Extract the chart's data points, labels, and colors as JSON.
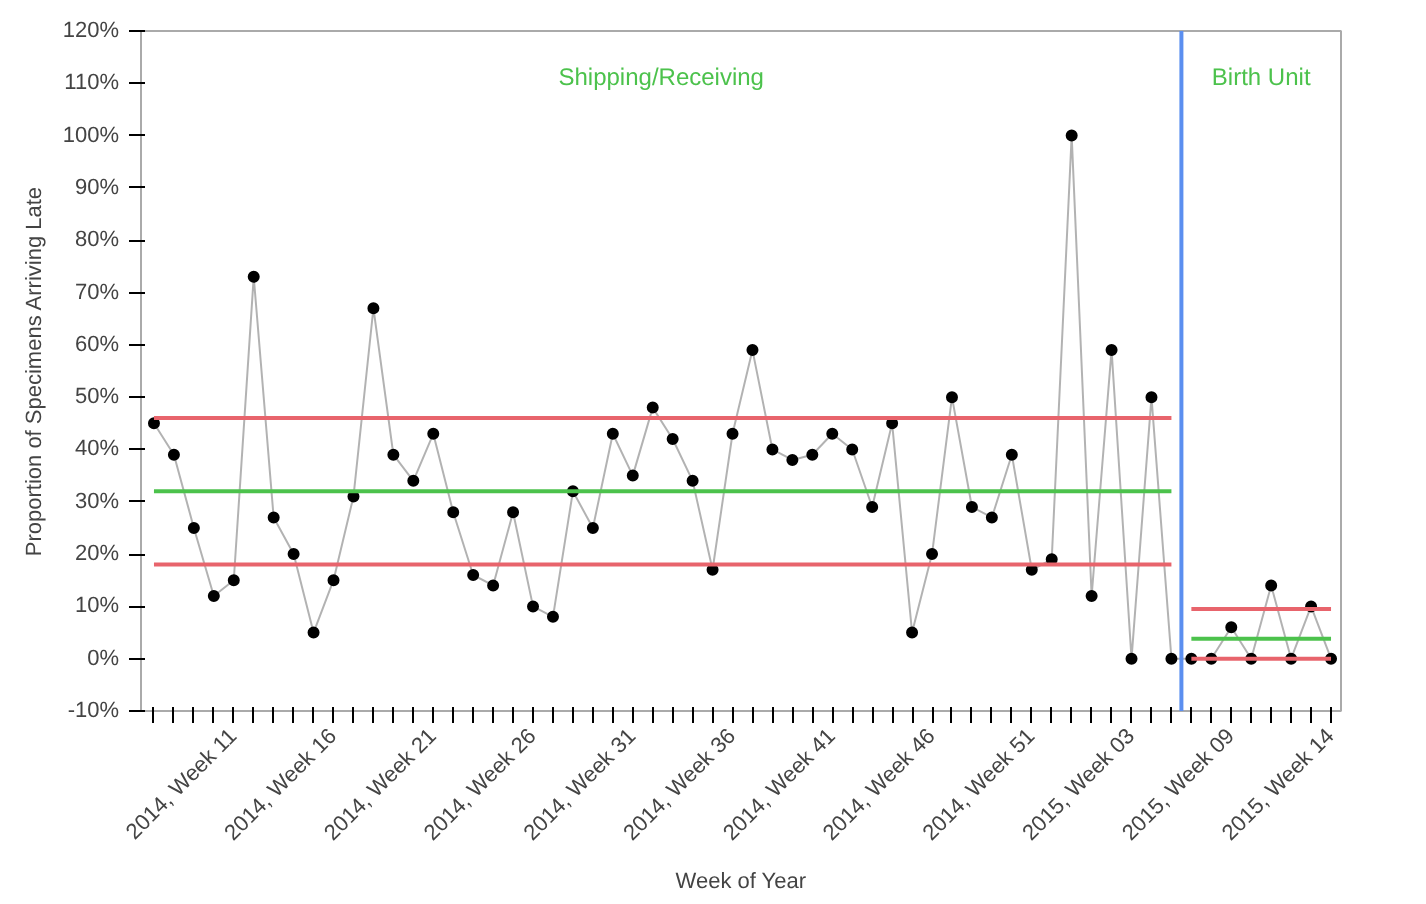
{
  "chart_data": {
    "type": "line",
    "xlabel": "Week of Year",
    "ylabel": "Proportion of Specimens Arriving Late",
    "categories": [
      null,
      null,
      null,
      null,
      "2014, Week 11",
      null,
      null,
      null,
      null,
      "2014, Week 16",
      null,
      null,
      null,
      null,
      "2014, Week 21",
      null,
      null,
      null,
      null,
      "2014, Week 26",
      null,
      null,
      null,
      null,
      "2014, Week 31",
      null,
      null,
      null,
      null,
      "2014, Week 36",
      null,
      null,
      null,
      null,
      "2014, Week 41",
      null,
      null,
      null,
      null,
      "2014, Week 46",
      null,
      null,
      null,
      null,
      "2014, Week 51",
      null,
      null,
      null,
      null,
      "2015, Week 03",
      null,
      null,
      null,
      null,
      "2015, Week 09",
      null,
      null,
      null,
      null,
      "2015, Week 14"
    ],
    "ylim": [
      -10,
      120
    ],
    "yticks": [
      {
        "value": -10,
        "label": "-10%"
      },
      {
        "value": 0,
        "label": "0%"
      },
      {
        "value": 10,
        "label": "10%"
      },
      {
        "value": 20,
        "label": "20%"
      },
      {
        "value": 30,
        "label": "30%"
      },
      {
        "value": 40,
        "label": "40%"
      },
      {
        "value": 50,
        "label": "50%"
      },
      {
        "value": 60,
        "label": "60%"
      },
      {
        "value": 70,
        "label": "70%"
      },
      {
        "value": 80,
        "label": "80%"
      },
      {
        "value": 90,
        "label": "90%"
      },
      {
        "value": 100,
        "label": "100%"
      },
      {
        "value": 110,
        "label": "110%"
      },
      {
        "value": 120,
        "label": "120%"
      }
    ],
    "grid": false,
    "marker": "circle",
    "series": [
      {
        "color": "#000000",
        "values": [
          45,
          39,
          25,
          12,
          15,
          73,
          27,
          20,
          5,
          15,
          31,
          67,
          39,
          34,
          43,
          28,
          16,
          14,
          28,
          10,
          8,
          32,
          25,
          43,
          35,
          48,
          42,
          34,
          17,
          43,
          59,
          40,
          38,
          39,
          43,
          40,
          29,
          45,
          5,
          20,
          50,
          29,
          27,
          39,
          17,
          19,
          100,
          12,
          59,
          0,
          50,
          0,
          0,
          0,
          6,
          0,
          14,
          0,
          10,
          0
        ]
      },
      {
        "marker": "none",
        "color": "#e8646c",
        "values": [
          46,
          46,
          46,
          46,
          46,
          46,
          46,
          46,
          46,
          46,
          46,
          46,
          46,
          46,
          46,
          46,
          46,
          46,
          46,
          46,
          46,
          46,
          46,
          46,
          46,
          46,
          46,
          46,
          46,
          46,
          46,
          46,
          46,
          46,
          46,
          46,
          46,
          46,
          46,
          46,
          46,
          46,
          46,
          46,
          46,
          46,
          46,
          46,
          46,
          46,
          46,
          46,
          null,
          null,
          null,
          null,
          null,
          null,
          null,
          null
        ]
      },
      {
        "marker": "none",
        "color": "#4cc24c",
        "values": [
          32,
          32,
          32,
          32,
          32,
          32,
          32,
          32,
          32,
          32,
          32,
          32,
          32,
          32,
          32,
          32,
          32,
          32,
          32,
          32,
          32,
          32,
          32,
          32,
          32,
          32,
          32,
          32,
          32,
          32,
          32,
          32,
          32,
          32,
          32,
          32,
          32,
          32,
          32,
          32,
          32,
          32,
          32,
          32,
          32,
          32,
          32,
          32,
          32,
          32,
          32,
          32,
          null,
          null,
          null,
          null,
          null,
          null,
          null,
          null
        ]
      },
      {
        "marker": "none",
        "color": "#e8646c",
        "values": [
          18,
          18,
          18,
          18,
          18,
          18,
          18,
          18,
          18,
          18,
          18,
          18,
          18,
          18,
          18,
          18,
          18,
          18,
          18,
          18,
          18,
          18,
          18,
          18,
          18,
          18,
          18,
          18,
          18,
          18,
          18,
          18,
          18,
          18,
          18,
          18,
          18,
          18,
          18,
          18,
          18,
          18,
          18,
          18,
          18,
          18,
          18,
          18,
          18,
          18,
          18,
          18,
          null,
          null,
          null,
          null,
          null,
          null,
          null,
          null
        ]
      },
      {
        "marker": "none",
        "color": "#e8646c",
        "values": [
          null,
          null,
          null,
          null,
          null,
          null,
          null,
          null,
          null,
          null,
          null,
          null,
          null,
          null,
          null,
          null,
          null,
          null,
          null,
          null,
          null,
          null,
          null,
          null,
          null,
          null,
          null,
          null,
          null,
          null,
          null,
          null,
          null,
          null,
          null,
          null,
          null,
          null,
          null,
          null,
          null,
          null,
          null,
          null,
          null,
          null,
          null,
          null,
          null,
          null,
          null,
          null,
          9.5,
          9.5,
          9.5,
          9.5,
          9.5,
          9.5,
          9.5,
          9.5
        ]
      },
      {
        "marker": "none",
        "color": "#4cc24c",
        "values": [
          null,
          null,
          null,
          null,
          null,
          null,
          null,
          null,
          null,
          null,
          null,
          null,
          null,
          null,
          null,
          null,
          null,
          null,
          null,
          null,
          null,
          null,
          null,
          null,
          null,
          null,
          null,
          null,
          null,
          null,
          null,
          null,
          null,
          null,
          null,
          null,
          null,
          null,
          null,
          null,
          null,
          null,
          null,
          null,
          null,
          null,
          null,
          null,
          null,
          null,
          null,
          null,
          3.8,
          3.8,
          3.8,
          3.8,
          3.8,
          3.8,
          3.8,
          3.8
        ]
      },
      {
        "marker": "none",
        "color": "#e8646c",
        "values": [
          null,
          null,
          null,
          null,
          null,
          null,
          null,
          null,
          null,
          null,
          null,
          null,
          null,
          null,
          null,
          null,
          null,
          null,
          null,
          null,
          null,
          null,
          null,
          null,
          null,
          null,
          null,
          null,
          null,
          null,
          null,
          null,
          null,
          null,
          null,
          null,
          null,
          null,
          null,
          null,
          null,
          null,
          null,
          null,
          null,
          null,
          null,
          null,
          null,
          null,
          null,
          null,
          0,
          0,
          0,
          0,
          0,
          0,
          0,
          0
        ]
      }
    ],
    "annotations": [
      "Shipping/Receiving",
      "Birth Unit"
    ]
  }
}
